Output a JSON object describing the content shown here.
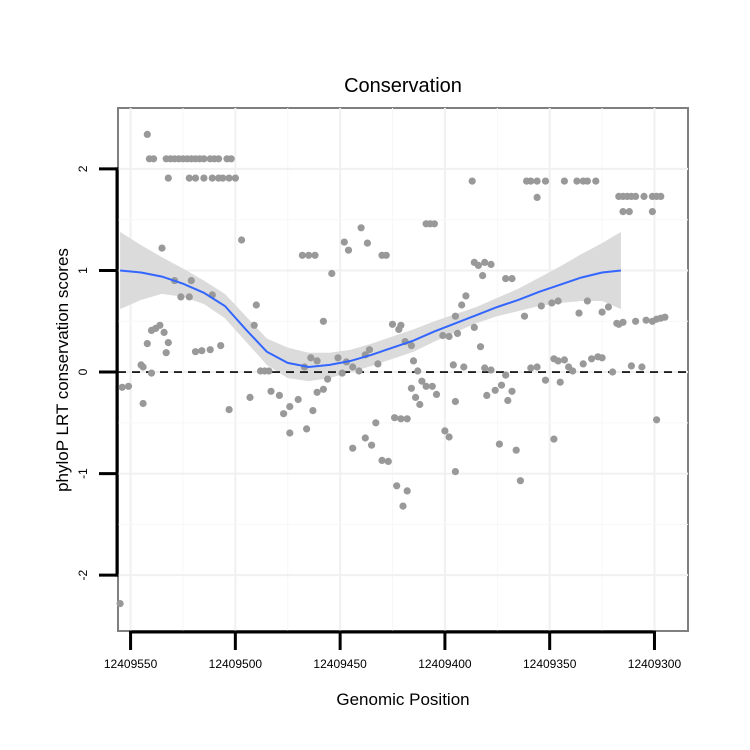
{
  "chart_data": {
    "type": "scatter",
    "title": "Conservation",
    "xlabel": "Genomic Position",
    "ylabel": "phyloP LRT conservation scores",
    "x_reversed": true,
    "xlim": [
      12409556,
      12409284
    ],
    "ylim": [
      -2.55,
      2.6
    ],
    "x_ticks": [
      12409550,
      12409500,
      12409450,
      12409400,
      12409350,
      12409300
    ],
    "x_tick_labels": [
      "12409550",
      "12409500",
      "12409450",
      "12409400",
      "12409350",
      "12409300"
    ],
    "y_ticks": [
      -2,
      -1,
      0,
      1,
      2
    ],
    "y_tick_labels": [
      "-2",
      "-1",
      "0",
      "1",
      "2"
    ],
    "reference_line": {
      "y": 0,
      "style": "dashed"
    },
    "point_color": "#999999",
    "smooth_color": "#3366ff",
    "ribbon_color": "#d9d9d9",
    "points": [
      [
        12409542,
        2.34
      ],
      [
        12409541,
        2.1
      ],
      [
        12409539,
        2.1
      ],
      [
        12409533,
        2.1
      ],
      [
        12409531,
        2.1
      ],
      [
        12409529,
        2.1
      ],
      [
        12409527,
        2.1
      ],
      [
        12409525,
        2.1
      ],
      [
        12409523,
        2.1
      ],
      [
        12409521,
        2.1
      ],
      [
        12409519,
        2.1
      ],
      [
        12409517,
        2.1
      ],
      [
        12409515,
        2.1
      ],
      [
        12409512,
        2.1
      ],
      [
        12409510,
        2.1
      ],
      [
        12409508,
        2.1
      ],
      [
        12409504,
        2.1
      ],
      [
        12409502,
        2.1
      ],
      [
        12409532,
        1.91
      ],
      [
        12409522,
        1.91
      ],
      [
        12409519,
        1.91
      ],
      [
        12409515,
        1.91
      ],
      [
        12409511,
        1.91
      ],
      [
        12409508,
        1.91
      ],
      [
        12409506,
        1.91
      ],
      [
        12409503,
        1.91
      ],
      [
        12409500,
        1.91
      ],
      [
        12409535,
        1.22
      ],
      [
        12409497,
        1.3
      ],
      [
        12409529,
        0.9
      ],
      [
        12409521,
        0.9
      ],
      [
        12409526,
        0.74
      ],
      [
        12409511,
        0.76
      ],
      [
        12409522,
        0.74
      ],
      [
        12409490,
        0.66
      ],
      [
        12409491,
        0.46
      ],
      [
        12409536,
        0.46
      ],
      [
        12409538,
        0.43
      ],
      [
        12409540,
        0.41
      ],
      [
        12409534,
        0.39
      ],
      [
        12409532,
        0.29
      ],
      [
        12409542,
        0.28
      ],
      [
        12409545,
        0.07
      ],
      [
        12409533,
        0.19
      ],
      [
        12409519,
        0.2
      ],
      [
        12409516,
        0.21
      ],
      [
        12409512,
        0.22
      ],
      [
        12409507,
        0.26
      ],
      [
        12409544,
        0.05
      ],
      [
        12409540,
        -0.01
      ],
      [
        12409554,
        -0.15
      ],
      [
        12409551,
        -0.14
      ],
      [
        12409544,
        -0.31
      ],
      [
        12409503,
        -0.37
      ],
      [
        12409555,
        -2.28
      ],
      [
        12409493,
        -0.25
      ],
      [
        12409488,
        0.01
      ],
      [
        12409486,
        0.01
      ],
      [
        12409484,
        0.01
      ],
      [
        12409483,
        -0.19
      ],
      [
        12409479,
        -0.23
      ],
      [
        12409474,
        -0.34
      ],
      [
        12409474,
        -0.6
      ],
      [
        12409470,
        -0.27
      ],
      [
        12409477,
        -0.41
      ],
      [
        12409466,
        -0.56
      ],
      [
        12409463,
        -0.38
      ],
      [
        12409461,
        -0.2
      ],
      [
        12409458,
        -0.17
      ],
      [
        12409456,
        -0.07
      ],
      [
        12409467,
        0.05
      ],
      [
        12409464,
        0.14
      ],
      [
        12409461,
        0.11
      ],
      [
        12409468,
        1.15
      ],
      [
        12409465,
        1.15
      ],
      [
        12409462,
        1.15
      ],
      [
        12409458,
        0.5
      ],
      [
        12409454,
        0.97
      ],
      [
        12409448,
        1.28
      ],
      [
        12409446,
        1.2
      ],
      [
        12409440,
        1.42
      ],
      [
        12409437,
        1.27
      ],
      [
        12409451,
        0.14
      ],
      [
        12409447,
        0.1
      ],
      [
        12409444,
        0.05
      ],
      [
        12409441,
        0.01
      ],
      [
        12409438,
        0.17
      ],
      [
        12409436,
        0.22
      ],
      [
        12409432,
        0.08
      ],
      [
        12409449,
        -0.01
      ],
      [
        12409444,
        -0.75
      ],
      [
        12409438,
        -0.65
      ],
      [
        12409435,
        -0.72
      ],
      [
        12409430,
        -0.87
      ],
      [
        12409427,
        -0.88
      ],
      [
        12409433,
        -0.5
      ],
      [
        12409430,
        1.15
      ],
      [
        12409428,
        1.15
      ],
      [
        12409425,
        0.47
      ],
      [
        12409422,
        0.42
      ],
      [
        12409421,
        0.46
      ],
      [
        12409419,
        0.3
      ],
      [
        12409416,
        0.26
      ],
      [
        12409424,
        -0.45
      ],
      [
        12409421,
        -0.46
      ],
      [
        12409418,
        -0.46
      ],
      [
        12409420,
        -1.32
      ],
      [
        12409418,
        -1.17
      ],
      [
        12409423,
        -1.12
      ],
      [
        12409415,
        0.11
      ],
      [
        12409413,
        0.01
      ],
      [
        12409411,
        -0.09
      ],
      [
        12409409,
        -0.14
      ],
      [
        12409406,
        -0.14
      ],
      [
        12409412,
        -0.32
      ],
      [
        12409404,
        -0.22
      ],
      [
        12409400,
        -0.58
      ],
      [
        12409398,
        -0.64
      ],
      [
        12409395,
        -0.98
      ],
      [
        12409395,
        -0.29
      ],
      [
        12409416,
        -0.16
      ],
      [
        12409414,
        -0.25
      ],
      [
        12409409,
        1.46
      ],
      [
        12409407,
        1.46
      ],
      [
        12409405,
        1.46
      ],
      [
        12409401,
        0.36
      ],
      [
        12409398,
        0.35
      ],
      [
        12409394,
        0.38
      ],
      [
        12409396,
        0.07
      ],
      [
        12409391,
        0.05
      ],
      [
        12409395,
        0.55
      ],
      [
        12409392,
        0.66
      ],
      [
        12409390,
        0.75
      ],
      [
        12409387,
        1.88
      ],
      [
        12409386,
        1.08
      ],
      [
        12409384,
        1.05
      ],
      [
        12409381,
        1.08
      ],
      [
        12409382,
        0.95
      ],
      [
        12409378,
        1.06
      ],
      [
        12409371,
        0.92
      ],
      [
        12409368,
        0.92
      ],
      [
        12409386,
        0.44
      ],
      [
        12409383,
        0.25
      ],
      [
        12409381,
        0.04
      ],
      [
        12409378,
        0.02
      ],
      [
        12409380,
        -0.23
      ],
      [
        12409376,
        -0.18
      ],
      [
        12409373,
        -0.13
      ],
      [
        12409371,
        -0.03
      ],
      [
        12409370,
        -0.28
      ],
      [
        12409368,
        -0.19
      ],
      [
        12409374,
        -0.71
      ],
      [
        12409366,
        -0.77
      ],
      [
        12409364,
        -1.07
      ],
      [
        12409361,
        1.88
      ],
      [
        12409359,
        1.88
      ],
      [
        12409356,
        1.88
      ],
      [
        12409356,
        1.72
      ],
      [
        12409352,
        1.88
      ],
      [
        12409343,
        1.88
      ],
      [
        12409337,
        1.88
      ],
      [
        12409334,
        1.88
      ],
      [
        12409332,
        1.88
      ],
      [
        12409328,
        1.88
      ],
      [
        12409359,
        0.04
      ],
      [
        12409354,
        0.65
      ],
      [
        12409349,
        0.68
      ],
      [
        12409346,
        0.7
      ],
      [
        12409362,
        0.55
      ],
      [
        12409356,
        0.05
      ],
      [
        12409348,
        0.13
      ],
      [
        12409346,
        0.11
      ],
      [
        12409343,
        0.12
      ],
      [
        12409341,
        0.05
      ],
      [
        12409339,
        0.01
      ],
      [
        12409345,
        -0.1
      ],
      [
        12409352,
        -0.08
      ],
      [
        12409348,
        -0.66
      ],
      [
        12409336,
        0.58
      ],
      [
        12409332,
        0.7
      ],
      [
        12409325,
        0.59
      ],
      [
        12409322,
        0.64
      ],
      [
        12409334,
        0.08
      ],
      [
        12409330,
        0.13
      ],
      [
        12409327,
        0.15
      ],
      [
        12409325,
        0.14
      ],
      [
        12409320,
        0.0
      ],
      [
        12409315,
        0.49
      ],
      [
        12409309,
        0.5
      ],
      [
        12409304,
        0.51
      ],
      [
        12409317,
        1.73
      ],
      [
        12409315,
        1.73
      ],
      [
        12409313,
        1.73
      ],
      [
        12409311,
        1.73
      ],
      [
        12409309,
        1.73
      ],
      [
        12409305,
        1.73
      ],
      [
        12409301,
        1.73
      ],
      [
        12409299,
        1.73
      ],
      [
        12409297,
        1.73
      ],
      [
        12409315,
        1.58
      ],
      [
        12409312,
        1.58
      ],
      [
        12409301,
        1.58
      ],
      [
        12409318,
        0.48
      ],
      [
        12409317,
        0.47
      ],
      [
        12409311,
        0.06
      ],
      [
        12409306,
        0.05
      ],
      [
        12409301,
        0.5
      ],
      [
        12409299,
        0.52
      ],
      [
        12409297,
        0.53
      ],
      [
        12409295,
        0.54
      ],
      [
        12409299,
        -0.47
      ]
    ],
    "smooth": [
      [
        12409555,
        1.0
      ],
      [
        12409545,
        0.98
      ],
      [
        12409535,
        0.94
      ],
      [
        12409525,
        0.87
      ],
      [
        12409515,
        0.78
      ],
      [
        12409505,
        0.65
      ],
      [
        12409495,
        0.42
      ],
      [
        12409485,
        0.2
      ],
      [
        12409475,
        0.09
      ],
      [
        12409465,
        0.05
      ],
      [
        12409455,
        0.07
      ],
      [
        12409445,
        0.11
      ],
      [
        12409435,
        0.17
      ],
      [
        12409425,
        0.24
      ],
      [
        12409415,
        0.31
      ],
      [
        12409405,
        0.4
      ],
      [
        12409395,
        0.48
      ],
      [
        12409385,
        0.56
      ],
      [
        12409375,
        0.64
      ],
      [
        12409365,
        0.71
      ],
      [
        12409355,
        0.79
      ],
      [
        12409345,
        0.86
      ],
      [
        12409335,
        0.93
      ],
      [
        12409325,
        0.98
      ],
      [
        12409316,
        1.0
      ]
    ],
    "ribbon_upper": [
      [
        12409555,
        1.38
      ],
      [
        12409545,
        1.25
      ],
      [
        12409535,
        1.13
      ],
      [
        12409525,
        1.02
      ],
      [
        12409515,
        0.9
      ],
      [
        12409505,
        0.77
      ],
      [
        12409495,
        0.55
      ],
      [
        12409485,
        0.33
      ],
      [
        12409475,
        0.24
      ],
      [
        12409465,
        0.19
      ],
      [
        12409455,
        0.19
      ],
      [
        12409445,
        0.22
      ],
      [
        12409435,
        0.28
      ],
      [
        12409425,
        0.35
      ],
      [
        12409415,
        0.42
      ],
      [
        12409405,
        0.5
      ],
      [
        12409395,
        0.57
      ],
      [
        12409385,
        0.64
      ],
      [
        12409375,
        0.73
      ],
      [
        12409365,
        0.82
      ],
      [
        12409355,
        0.93
      ],
      [
        12409345,
        1.04
      ],
      [
        12409335,
        1.16
      ],
      [
        12409325,
        1.27
      ],
      [
        12409316,
        1.38
      ]
    ],
    "ribbon_lower": [
      [
        12409555,
        0.62
      ],
      [
        12409545,
        0.71
      ],
      [
        12409535,
        0.77
      ],
      [
        12409525,
        0.74
      ],
      [
        12409515,
        0.67
      ],
      [
        12409505,
        0.53
      ],
      [
        12409495,
        0.3
      ],
      [
        12409485,
        0.07
      ],
      [
        12409475,
        -0.06
      ],
      [
        12409465,
        -0.09
      ],
      [
        12409455,
        -0.06
      ],
      [
        12409445,
        0.0
      ],
      [
        12409435,
        0.06
      ],
      [
        12409425,
        0.13
      ],
      [
        12409415,
        0.2
      ],
      [
        12409405,
        0.3
      ],
      [
        12409395,
        0.39
      ],
      [
        12409385,
        0.48
      ],
      [
        12409375,
        0.55
      ],
      [
        12409365,
        0.6
      ],
      [
        12409355,
        0.65
      ],
      [
        12409345,
        0.68
      ],
      [
        12409335,
        0.7
      ],
      [
        12409325,
        0.7
      ],
      [
        12409316,
        0.62
      ]
    ]
  }
}
